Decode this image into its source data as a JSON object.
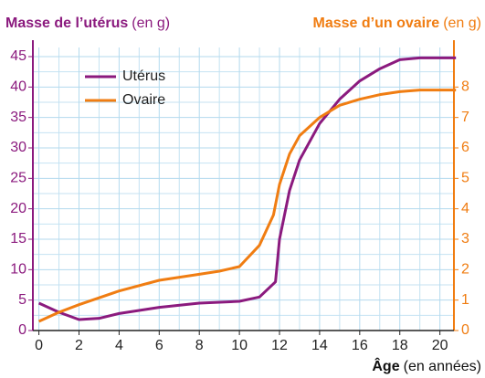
{
  "chart_data": {
    "type": "line",
    "y_label": "Masse de l’utérus",
    "y_label_unit": "(en g)",
    "y2_label": "Masse d’un ovaire",
    "y2_label_unit": "(en g)",
    "x_label": "Âge",
    "x_label_unit": "(en années)",
    "xlim": [
      -0.3,
      20.7
    ],
    "xticks": [
      0,
      2,
      4,
      6,
      8,
      10,
      12,
      14,
      16,
      18,
      20
    ],
    "ylim": [
      0,
      46.5
    ],
    "yticks": [
      0,
      5,
      10,
      15,
      20,
      25,
      30,
      35,
      40,
      45
    ],
    "y2lim": [
      0,
      9.3
    ],
    "y2ticks": [
      0,
      1,
      2,
      3,
      4,
      5,
      6,
      7,
      8
    ],
    "grid": true,
    "legend": "upper left",
    "series": [
      {
        "name": "Utérus",
        "color": "#8b1a7e",
        "x": [
          0,
          1,
          2,
          3,
          4,
          6,
          8,
          10,
          11,
          11.8,
          12,
          12.5,
          13,
          14,
          15,
          16,
          17,
          18,
          19,
          20,
          20.8
        ],
        "values": [
          4.5,
          3,
          1.8,
          2,
          2.8,
          3.8,
          4.5,
          4.8,
          5.5,
          8,
          15,
          23,
          28,
          34,
          38,
          41,
          43,
          44.5,
          44.8,
          44.8,
          44.8
        ]
      },
      {
        "name": "Ovaire",
        "color": "#f07d12",
        "axis": "y2",
        "x": [
          0,
          1,
          2,
          4,
          6,
          8,
          9,
          10,
          11,
          11.7,
          12,
          12.5,
          13,
          14,
          15,
          16,
          17,
          18,
          19,
          20,
          20.8
        ],
        "values": [
          0.3,
          0.6,
          0.85,
          1.3,
          1.65,
          1.85,
          1.95,
          2.1,
          2.8,
          3.8,
          4.8,
          5.8,
          6.4,
          7,
          7.4,
          7.6,
          7.75,
          7.85,
          7.9,
          7.9,
          7.9
        ]
      }
    ]
  }
}
